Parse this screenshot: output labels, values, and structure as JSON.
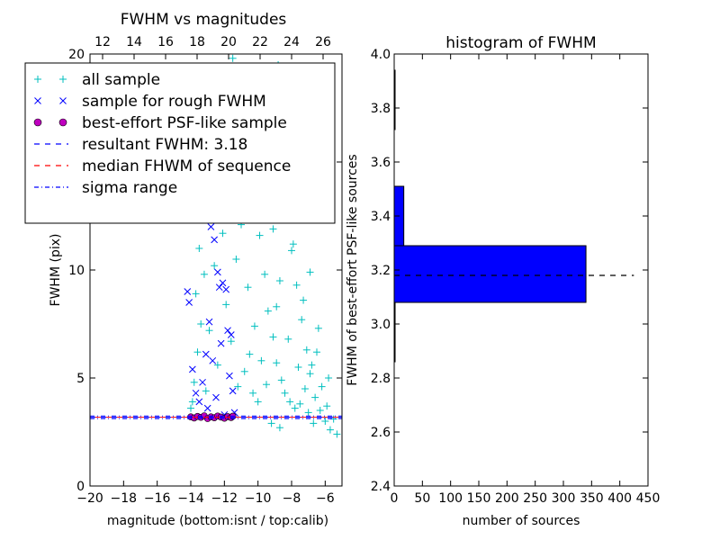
{
  "chart_data": [
    {
      "type": "scatter",
      "title": "FWHM vs magnitudes",
      "xlabel": "magnitude (bottom:isnt / top:calib)",
      "ylabel": "FWHM (pix)",
      "xlim": [
        -20,
        -5
      ],
      "ylim": [
        0,
        20
      ],
      "top_xlim": [
        11.2,
        27.2
      ],
      "x_ticks": [
        -20,
        -18,
        -16,
        -14,
        -12,
        -10,
        -8,
        -6
      ],
      "x_tick_labels": [
        "−20",
        "−18",
        "−16",
        "−14",
        "−12",
        "−10",
        "−8",
        "−6"
      ],
      "top_x_ticks": [
        12,
        14,
        16,
        18,
        20,
        22,
        24,
        26
      ],
      "top_x_tick_labels": [
        "12",
        "14",
        "16",
        "18",
        "20",
        "22",
        "24",
        "26"
      ],
      "y_ticks": [
        0,
        5,
        10,
        15,
        20
      ],
      "y_tick_labels": [
        "0",
        "5",
        "10",
        "",
        "20"
      ],
      "legend_placement": "top-left",
      "legend": [
        {
          "label": "all sample",
          "marker": "+",
          "color": "#00bfbf"
        },
        {
          "label": "sample for rough FWHM",
          "marker": "x",
          "color": "#0000ff"
        },
        {
          "label": "best-effort PSF-like sample",
          "marker": "o",
          "color": "#bf00bf"
        },
        {
          "label": "resultant FWHM: 3.18",
          "line": "dashed",
          "color": "#0000ff"
        },
        {
          "label": "median FHWM of sequence",
          "line": "dashed",
          "color": "#ff0000"
        },
        {
          "label": "sigma range",
          "line": "dashdot",
          "color": "#0000ff"
        }
      ],
      "resultant_fwhm": 3.18,
      "sigma_range": [
        3.12,
        3.24
      ],
      "series": [
        {
          "name": "all sample",
          "marker": "+",
          "color": "#00bfbf",
          "points": [
            [
              -13.8,
              4.8
            ],
            [
              -13.6,
              6.2
            ],
            [
              -13.4,
              7.5
            ],
            [
              -13.2,
              9.8
            ],
            [
              -13.0,
              12.5
            ],
            [
              -12.8,
              15.4
            ],
            [
              -13.5,
              11.0
            ],
            [
              -12.2,
              13.8
            ],
            [
              -12.0,
              16.5
            ],
            [
              -11.8,
              18.8
            ],
            [
              -11.5,
              19.8
            ],
            [
              -13.9,
              3.9
            ],
            [
              -13.1,
              4.4
            ],
            [
              -12.4,
              5.6
            ],
            [
              -12.9,
              7.2
            ],
            [
              -11.9,
              8.4
            ],
            [
              -11.3,
              10.5
            ],
            [
              -11.0,
              12.1
            ],
            [
              -10.7,
              14.3
            ],
            [
              -10.4,
              16.2
            ],
            [
              -10.1,
              13.5
            ],
            [
              -9.9,
              11.6
            ],
            [
              -9.6,
              9.8
            ],
            [
              -9.4,
              8.1
            ],
            [
              -9.1,
              6.9
            ],
            [
              -8.9,
              5.7
            ],
            [
              -8.6,
              4.9
            ],
            [
              -8.4,
              4.3
            ],
            [
              -8.1,
              3.9
            ],
            [
              -7.8,
              3.6
            ],
            [
              -7.5,
              3.8
            ],
            [
              -7.2,
              4.5
            ],
            [
              -6.9,
              5.2
            ],
            [
              -6.6,
              4.1
            ],
            [
              -6.3,
              3.5
            ],
            [
              -6.0,
              3.0
            ],
            [
              -5.7,
              2.6
            ],
            [
              -5.5,
              3.1
            ],
            [
              -5.3,
              2.4
            ],
            [
              -9.0,
              17.8
            ],
            [
              -8.8,
              19.5
            ],
            [
              -8.6,
              15.0
            ],
            [
              -8.3,
              12.8
            ],
            [
              -8.0,
              10.9
            ],
            [
              -7.7,
              9.3
            ],
            [
              -7.4,
              7.7
            ],
            [
              -7.1,
              6.3
            ],
            [
              -6.8,
              5.6
            ],
            [
              -10.2,
              7.4
            ],
            [
              -10.5,
              6.1
            ],
            [
              -10.8,
              5.3
            ],
            [
              -11.2,
              4.6
            ],
            [
              -11.6,
              6.7
            ],
            [
              -12.6,
              10.2
            ],
            [
              -13.3,
              13.1
            ],
            [
              -14.0,
              3.6
            ],
            [
              -13.7,
              8.9
            ],
            [
              -12.1,
              11.7
            ],
            [
              -9.7,
              18.1
            ],
            [
              -9.3,
              15.6
            ],
            [
              -8.5,
              13.6
            ],
            [
              -7.9,
              11.2
            ],
            [
              -7.3,
              8.6
            ],
            [
              -6.5,
              6.2
            ],
            [
              -6.2,
              4.6
            ],
            [
              -5.9,
              3.7
            ],
            [
              -9.5,
              4.7
            ],
            [
              -9.8,
              5.8
            ],
            [
              -10.0,
              3.9
            ],
            [
              -10.3,
              4.3
            ],
            [
              -8.2,
              6.8
            ],
            [
              -7.6,
              5.5
            ],
            [
              -7.0,
              3.4
            ],
            [
              -6.7,
              2.9
            ],
            [
              -8.7,
              2.7
            ],
            [
              -9.2,
              2.9
            ],
            [
              -10.6,
              9.2
            ],
            [
              -11.4,
              14.8
            ],
            [
              -12.3,
              17.6
            ],
            [
              -13.0,
              19.2
            ],
            [
              -8.7,
              9.5
            ],
            [
              -8.9,
              8.3
            ],
            [
              -9.1,
              11.9
            ],
            [
              -8.4,
              16.9
            ],
            [
              -7.5,
              13.0
            ],
            [
              -6.9,
              9.9
            ],
            [
              -6.4,
              7.3
            ],
            [
              -5.8,
              5.0
            ]
          ]
        },
        {
          "name": "sample for rough FWHM",
          "marker": "x",
          "color": "#0000ff",
          "points": [
            [
              -14.2,
              9.0
            ],
            [
              -14.1,
              8.5
            ],
            [
              -13.9,
              5.4
            ],
            [
              -13.7,
              4.3
            ],
            [
              -13.5,
              3.9
            ],
            [
              -13.3,
              4.8
            ],
            [
              -13.1,
              6.1
            ],
            [
              -12.9,
              7.6
            ],
            [
              -12.7,
              5.8
            ],
            [
              -12.5,
              4.1
            ],
            [
              -12.3,
              9.2
            ],
            [
              -12.1,
              9.4
            ],
            [
              -11.9,
              9.1
            ],
            [
              -11.8,
              7.2
            ],
            [
              -11.7,
              5.1
            ],
            [
              -11.5,
              4.4
            ],
            [
              -12.8,
              12.0
            ],
            [
              -12.6,
              11.4
            ],
            [
              -12.4,
              9.9
            ],
            [
              -13.4,
              13.4
            ],
            [
              -11.6,
              7.0
            ],
            [
              -12.2,
              6.6
            ],
            [
              -13.0,
              3.6
            ],
            [
              -12.0,
              3.3
            ],
            [
              -11.4,
              3.4
            ]
          ]
        },
        {
          "name": "best-effort PSF-like sample",
          "marker": "o",
          "color": "#bf00bf",
          "points": [
            [
              -14.0,
              3.2
            ],
            [
              -13.8,
              3.15
            ],
            [
              -13.6,
              3.22
            ],
            [
              -13.4,
              3.18
            ],
            [
              -13.2,
              3.25
            ],
            [
              -13.0,
              3.12
            ],
            [
              -12.8,
              3.2
            ],
            [
              -12.6,
              3.16
            ],
            [
              -12.4,
              3.24
            ],
            [
              -12.2,
              3.19
            ],
            [
              -12.0,
              3.14
            ],
            [
              -11.8,
              3.21
            ],
            [
              -11.6,
              3.17
            ],
            [
              -11.5,
              3.23
            ]
          ]
        }
      ]
    },
    {
      "type": "bar",
      "orientation": "horizontal",
      "title": "histogram of FWHM",
      "xlabel": "number of sources",
      "ylabel": "FWHM of best-effort PSF-like sources",
      "xlim": [
        0,
        450
      ],
      "ylim": [
        2.4,
        4.0
      ],
      "x_ticks": [
        0,
        50,
        100,
        150,
        200,
        250,
        300,
        350,
        400,
        450
      ],
      "x_tick_labels": [
        "0",
        "50",
        "100",
        "150",
        "200",
        "250",
        "300",
        "350",
        "400",
        "450"
      ],
      "y_ticks": [
        2.4,
        2.6,
        2.8,
        3.0,
        3.2,
        3.4,
        3.6,
        3.8,
        4.0
      ],
      "y_tick_labels": [
        "2.4",
        "2.6",
        "2.8",
        "3.0",
        "3.2",
        "3.4",
        "3.6",
        "3.8",
        "4.0"
      ],
      "bar_color": "#0000ff",
      "bins": [
        {
          "from": 2.86,
          "to": 3.08,
          "count": 1
        },
        {
          "from": 3.08,
          "to": 3.29,
          "count": 340
        },
        {
          "from": 3.29,
          "to": 3.51,
          "count": 17
        },
        {
          "from": 3.51,
          "to": 3.72,
          "count": 0
        },
        {
          "from": 3.72,
          "to": 3.94,
          "count": 1
        }
      ],
      "reference_line": {
        "y": 3.18,
        "x_to": 425,
        "style": "dashed",
        "color": "#000000"
      }
    }
  ]
}
